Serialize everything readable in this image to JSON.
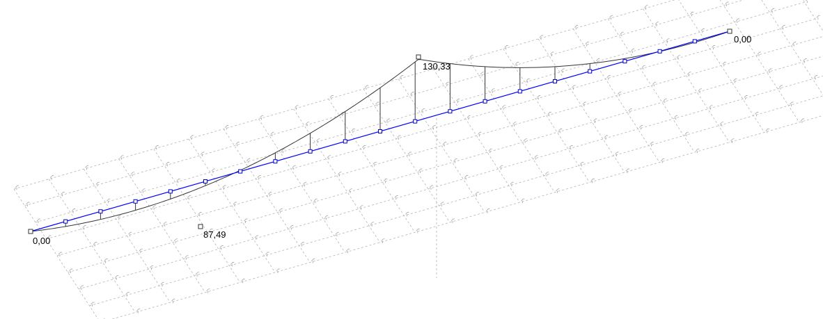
{
  "diagram": {
    "labels": {
      "support_left": "0,00",
      "span1_extreme": "87,49",
      "mid_support": "130,33",
      "support_right": "0,00"
    },
    "colors": {
      "background": "#ffffff",
      "member": "#0000ff",
      "node": "#0000cc",
      "diagram": "#333333",
      "grid": "#b4b4b4",
      "grid_glyph": "#9a9a9a",
      "label": "#000000"
    }
  }
}
